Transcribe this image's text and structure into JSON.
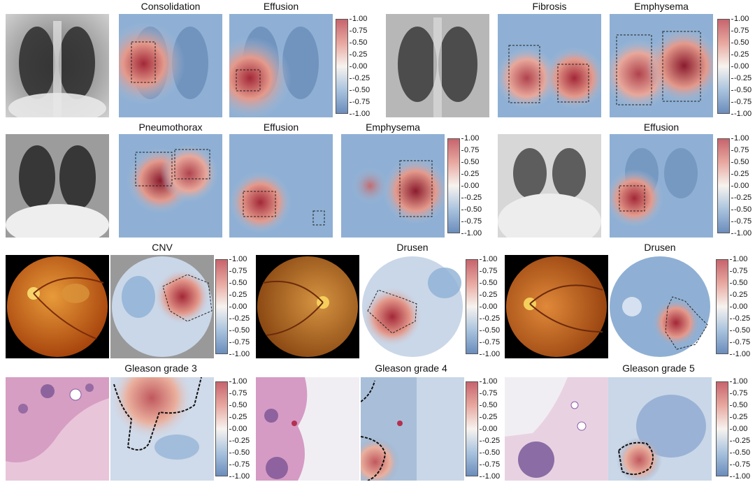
{
  "colorbar_ticks": [
    "1.00",
    "0.75",
    "0.50",
    "0.25",
    "0.00",
    "-0.25",
    "-0.50",
    "-0.75",
    "-1.00"
  ],
  "rows": [
    {
      "kind": "xray",
      "titles": [
        "Consolidation",
        "Effusion",
        "Fibrosis",
        "Emphysema"
      ]
    },
    {
      "kind": "xray",
      "titles": [
        "Pneumothorax",
        "Effusion",
        "Emphysema",
        "Effusion"
      ]
    },
    {
      "kind": "fundus",
      "titles": [
        "CNV",
        "Drusen",
        "Drusen"
      ]
    },
    {
      "kind": "histology",
      "titles": [
        "Gleason grade 3",
        "Gleason grade 4",
        "Gleason grade 5"
      ]
    }
  ],
  "colors": {
    "heat_high": "#b0303c",
    "heat_low": "#5d86bb",
    "fundus_orange": "#c7681e",
    "tissue_pink": "#d9a6c8"
  }
}
